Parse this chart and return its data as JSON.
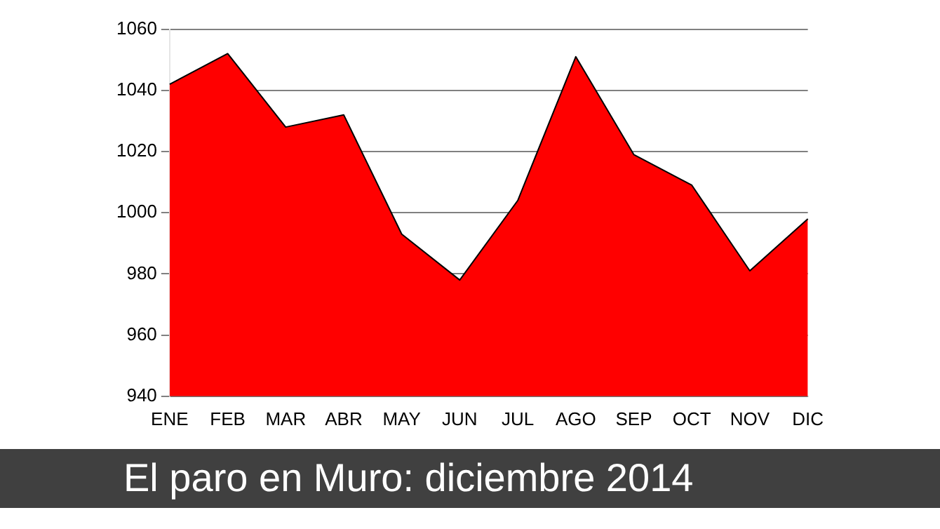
{
  "chart_data": {
    "type": "area",
    "title": "El paro en Muro: diciembre 2014",
    "categories": [
      "ENE",
      "FEB",
      "MAR",
      "ABR",
      "MAY",
      "JUN",
      "JUL",
      "AGO",
      "SEP",
      "OCT",
      "NOV",
      "DIC"
    ],
    "values": [
      1042,
      1052,
      1028,
      1032,
      993,
      978,
      1004,
      1051,
      1019,
      1009,
      981,
      998
    ],
    "color": "#ff0000",
    "ylim": [
      940,
      1060
    ],
    "yticks": [
      940,
      960,
      980,
      1000,
      1020,
      1040,
      1060
    ],
    "grid": "y"
  }
}
